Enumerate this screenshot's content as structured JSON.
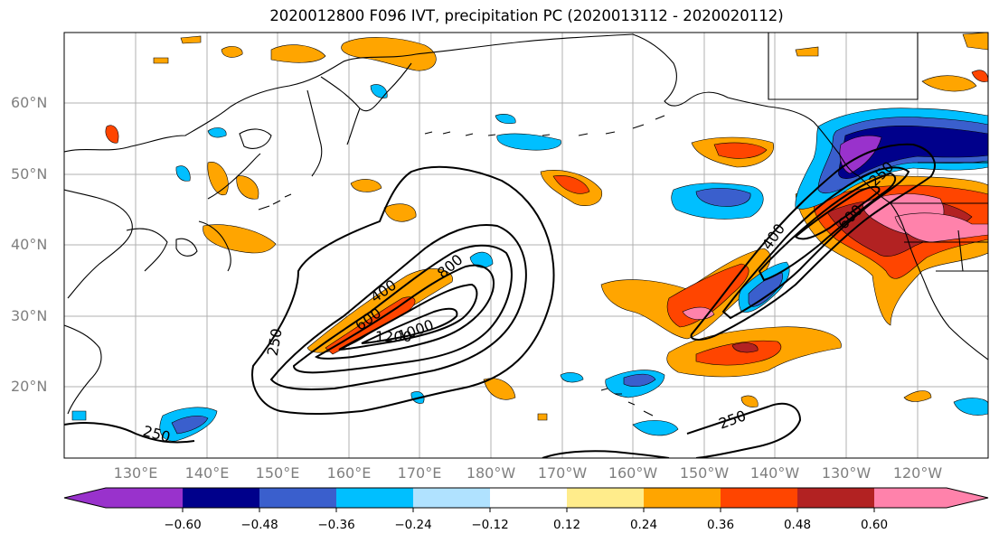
{
  "figure": {
    "title": "2020012800 F096 IVT, precipitation PC (2020013112 - 2020020112)"
  },
  "map": {
    "lat_labels": [
      "60°N",
      "50°N",
      "40°N",
      "30°N",
      "20°N"
    ],
    "lon_labels": [
      "130°E",
      "140°E",
      "150°E",
      "160°E",
      "170°E",
      "180°W",
      "170°W",
      "160°W",
      "150°W",
      "140°W",
      "130°W",
      "120°W"
    ],
    "contour_labels": [
      "250",
      "400",
      "600",
      "800",
      "1000",
      "1200",
      "250",
      "400",
      "600",
      "250",
      "250"
    ],
    "colors": {
      "land_outline": "#000000",
      "grid": "#b0b0b0",
      "contour": "#000000"
    }
  },
  "colorbar": {
    "tick_labels": [
      "−0.60",
      "−0.48",
      "−0.36",
      "−0.24",
      "−0.12",
      "0.12",
      "0.24",
      "0.36",
      "0.48",
      "0.60"
    ],
    "colors": [
      "#9932cc",
      "#00008b",
      "#3a5fcd",
      "#00bfff",
      "#b0e2ff",
      "#ffffff",
      "#ffec8b",
      "#ffa500",
      "#ff4500",
      "#b22222",
      "#ff82ab"
    ]
  },
  "chart_data": {
    "type": "heatmap",
    "title": "2020012800 F096 IVT, precipitation PC (2020013112 - 2020020112)",
    "xlabel": "",
    "ylabel": "",
    "x_ticks": [
      "130°E",
      "140°E",
      "150°E",
      "160°E",
      "170°E",
      "180°W",
      "170°W",
      "160°W",
      "150°W",
      "140°W",
      "130°W",
      "120°W"
    ],
    "y_ticks": [
      "20°N",
      "30°N",
      "40°N",
      "50°N",
      "60°N"
    ],
    "lon_range_deg_east": [
      120,
      250
    ],
    "lat_range_deg_north": [
      10,
      70
    ],
    "grid": true,
    "colorbar_levels": [
      -0.6,
      -0.48,
      -0.36,
      -0.24,
      -0.12,
      0.12,
      0.24,
      0.36,
      0.48,
      0.6
    ],
    "ivt_contour_levels": [
      250,
      400,
      600,
      800,
      1000,
      1200
    ]
  }
}
